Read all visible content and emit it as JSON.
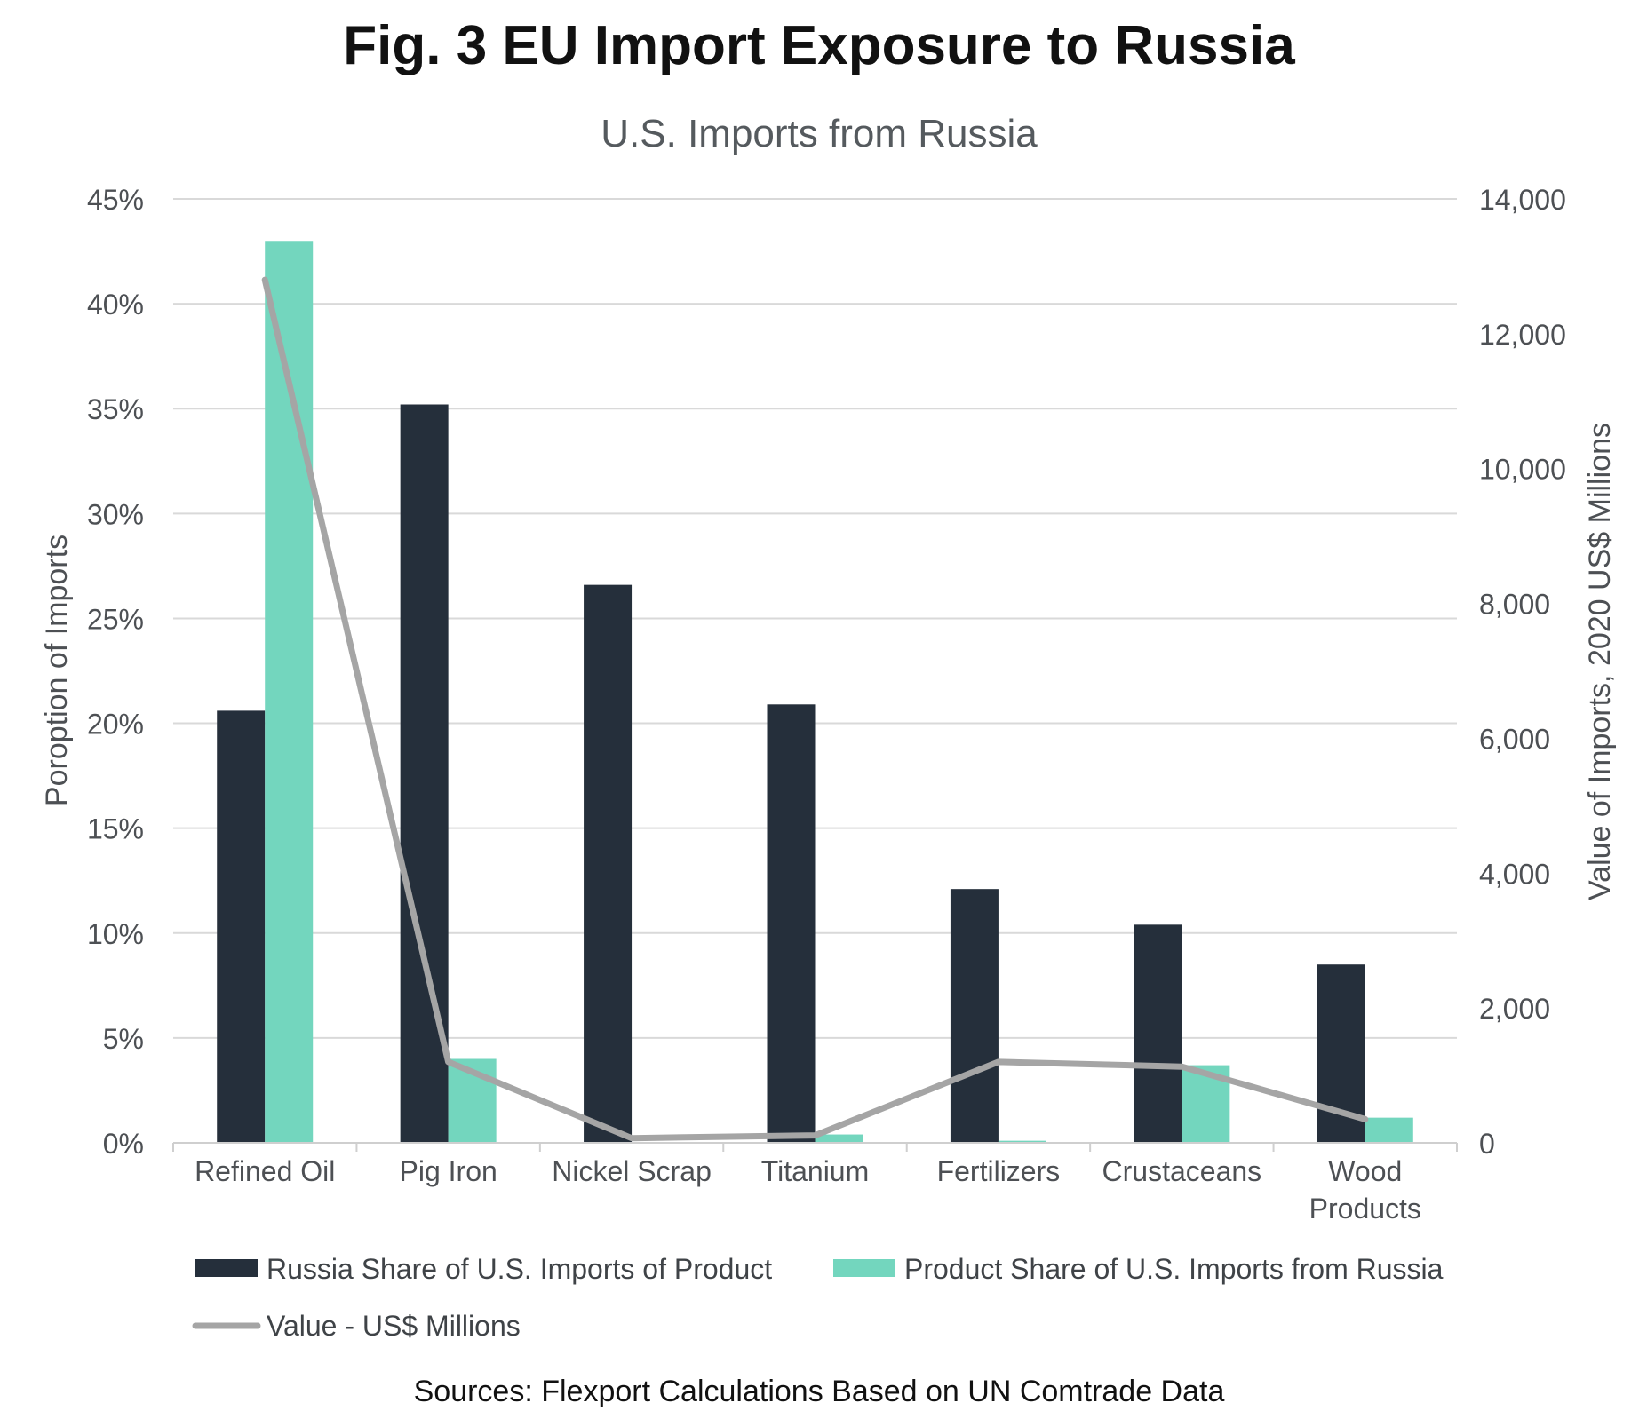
{
  "chart_data": {
    "type": "bar",
    "title": "Fig. 3 EU Import Exposure to Russia",
    "subtitle": "U.S. Imports from Russia",
    "categories": [
      [
        "Refined Oil"
      ],
      [
        "Pig Iron"
      ],
      [
        "Nickel Scrap"
      ],
      [
        "Titanium"
      ],
      [
        "Fertilizers"
      ],
      [
        "Crustaceans"
      ],
      [
        "Wood",
        "Products"
      ]
    ],
    "series": [
      {
        "name": "Russia Share of U.S. Imports of Product",
        "axis": "left",
        "kind": "bar",
        "color": "#252f3b",
        "values": [
          20.6,
          35.2,
          26.6,
          20.9,
          12.1,
          10.4,
          8.5
        ]
      },
      {
        "name": "Product Share of U.S. Imports from Russia",
        "axis": "left",
        "kind": "bar",
        "color": "#73d6be",
        "values": [
          43.0,
          4.0,
          0.0,
          0.4,
          0.1,
          3.7,
          1.2
        ]
      },
      {
        "name": "Value - US$ Millions",
        "axis": "right",
        "kind": "line",
        "color": "#a5a5a5",
        "values": [
          12800,
          1200,
          70,
          110,
          1200,
          1130,
          350
        ]
      }
    ],
    "y_left": {
      "label": "Poroption of Imports",
      "min": 0,
      "max": 45,
      "ticks": [
        0,
        5,
        10,
        15,
        20,
        25,
        30,
        35,
        40,
        45
      ],
      "tick_labels": [
        "0%",
        "5%",
        "10%",
        "15%",
        "20%",
        "25%",
        "30%",
        "35%",
        "40%",
        "45%"
      ]
    },
    "y_right": {
      "label": "Value of Imports, 2020 US$ Millions",
      "min": 0,
      "max": 14000,
      "ticks": [
        0,
        2000,
        4000,
        6000,
        8000,
        10000,
        12000,
        14000
      ],
      "tick_labels": [
        "0",
        "2,000",
        "4,000",
        "6,000",
        "8,000",
        "10,000",
        "12,000",
        "14,000"
      ]
    },
    "grid": true,
    "legend_position": "bottom",
    "source": "Sources: Flexport Calculations Based on UN Comtrade Data"
  }
}
